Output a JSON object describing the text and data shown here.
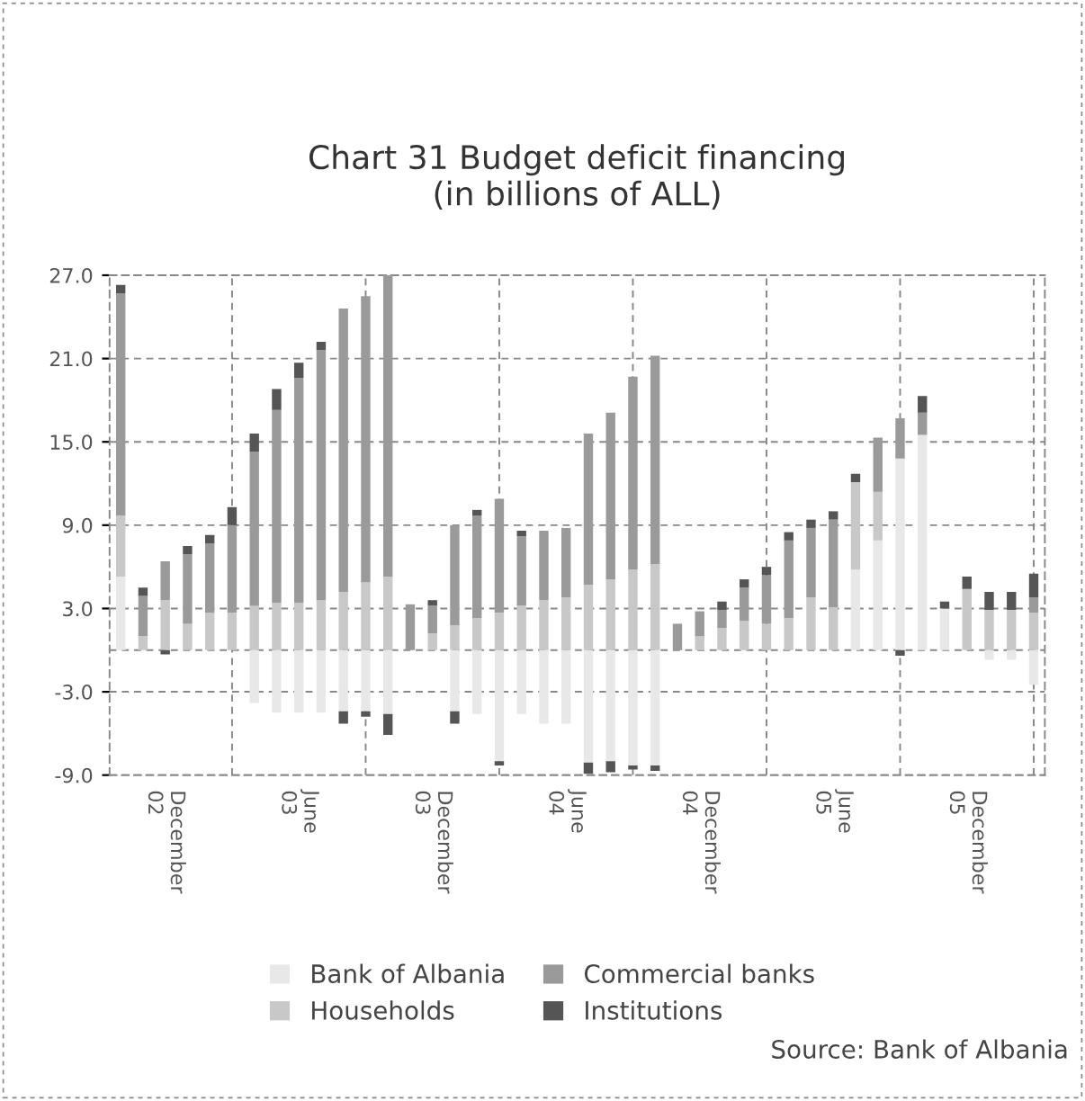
{
  "chart_data": {
    "type": "bar",
    "stacked": true,
    "title": "Chart 31 Budget deficit financing\n(in billions of ALL)",
    "categories": [
      null,
      null,
      "December\n02",
      null,
      null,
      null,
      null,
      null,
      "June\n03",
      null,
      null,
      null,
      null,
      null,
      "December\n03",
      null,
      null,
      null,
      null,
      null,
      "June\n04",
      null,
      null,
      null,
      null,
      null,
      "December\n04",
      null,
      null,
      null,
      null,
      null,
      "June\n05",
      null,
      null,
      null,
      null,
      null,
      "December\n05",
      null,
      null,
      null
    ],
    "series": [
      {
        "name": "Bank of Albania",
        "color": "#e8e8e8",
        "values": [
          5.3,
          0,
          0,
          0,
          0,
          0,
          -3.8,
          -4.5,
          -4.5,
          -4.5,
          -4.4,
          -4.4,
          -4.6,
          0,
          0,
          -4.4,
          -4.6,
          -8.0,
          -4.6,
          -5.3,
          -5.3,
          -8.1,
          -8.0,
          -8.3,
          -8.3,
          0,
          0,
          0,
          0,
          0,
          0,
          0,
          0,
          5.8,
          7.9,
          13.8,
          15.5,
          3.0,
          0,
          -0.7,
          -0.7,
          -2.5
        ]
      },
      {
        "name": "Households",
        "color": "#c8c8c8",
        "values": [
          4.4,
          1.0,
          3.6,
          1.9,
          2.7,
          2.7,
          3.2,
          3.4,
          3.4,
          3.6,
          4.2,
          4.9,
          5.3,
          null,
          1.2,
          1.8,
          2.3,
          2.7,
          3.2,
          3.6,
          3.8,
          4.7,
          5.1,
          5.8,
          6.2,
          0,
          1.0,
          1.6,
          2.1,
          1.9,
          2.3,
          3.8,
          3.1,
          6.3,
          3.5,
          0,
          0,
          0,
          4.4,
          2.9,
          2.9,
          2.7
        ]
      },
      {
        "name": "Commercial banks",
        "color": "#9a9a9a",
        "values": [
          16.0,
          2.9,
          2.8,
          5.0,
          5.0,
          6.3,
          11.1,
          13.9,
          16.2,
          18.0,
          20.4,
          20.6,
          21.7,
          3.3,
          2.0,
          7.2,
          7.4,
          8.2,
          5.0,
          5.0,
          5.0,
          10.9,
          12.0,
          13.9,
          15.0,
          1.9,
          1.8,
          1.3,
          2.4,
          3.5,
          5.6,
          5.0,
          6.3,
          0,
          3.9,
          2.9,
          1.6,
          0,
          0,
          0,
          0,
          1.1
        ]
      },
      {
        "name": "Institutions",
        "color": "#555555",
        "values": [
          0.6,
          0.6,
          -0.3,
          0.6,
          0.6,
          1.3,
          1.3,
          1.5,
          1.1,
          0.6,
          -0.9,
          -0.4,
          -1.5,
          0,
          0.4,
          -0.9,
          0.4,
          -0.3,
          0.4,
          0,
          0,
          -0.8,
          -0.8,
          -0.3,
          -0.4,
          0,
          0,
          0.6,
          0.6,
          0.6,
          0.6,
          0.6,
          0.6,
          0.6,
          0,
          -0.4,
          1.2,
          0.5,
          0.9,
          1.3,
          1.3,
          1.7
        ]
      }
    ],
    "ylim": [
      -9,
      27
    ],
    "yticks": [
      {
        "value": -9,
        "label": "-9.0"
      },
      {
        "value": -3,
        "label": "-3.0"
      },
      {
        "value": 3,
        "label": "3.0"
      },
      {
        "value": 9,
        "label": "9.0"
      },
      {
        "value": 15,
        "label": "15.0"
      },
      {
        "value": 21,
        "label": "21.0"
      },
      {
        "value": 27,
        "label": "27.0"
      }
    ],
    "grid": true,
    "legend": "bottom",
    "annotations": [
      "Source: Bank of Albania"
    ]
  }
}
